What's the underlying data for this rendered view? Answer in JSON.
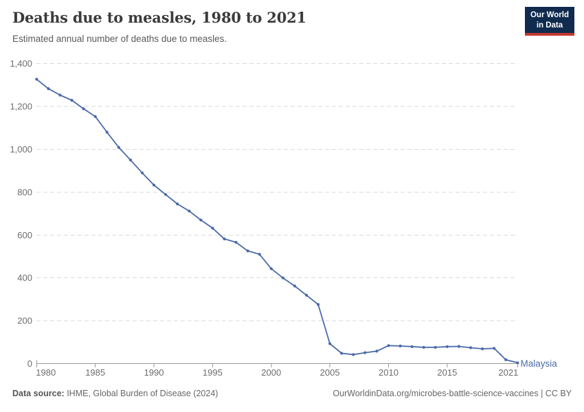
{
  "header": {
    "title": "Deaths due to measles, 1980 to 2021",
    "subtitle": "Estimated annual number of deaths due to measles.",
    "logo": {
      "line1": "Our World",
      "line2": "in Data",
      "bg_color": "#102b4e",
      "accent_color": "#c5392f"
    }
  },
  "chart_data": {
    "type": "line",
    "title": "Deaths due to measles, 1980 to 2021",
    "subtitle": "Estimated annual number of deaths due to measles.",
    "xlabel": "",
    "ylabel": "",
    "xlim": [
      1980,
      2021
    ],
    "ylim": [
      0,
      1400
    ],
    "x_ticks": [
      1980,
      1985,
      1990,
      1995,
      2000,
      2005,
      2010,
      2015,
      2021
    ],
    "y_ticks": [
      0,
      200,
      400,
      600,
      800,
      1000,
      1200,
      1400
    ],
    "grid": "horizontal-dashed",
    "legend_position": "end-of-line-label",
    "colors": {
      "grid": "#dadada",
      "axis": "#979797",
      "tick_label": "#6c6c6c"
    },
    "series": [
      {
        "name": "Malaysia",
        "color": "#4a6aa8",
        "x": [
          1980,
          1981,
          1982,
          1983,
          1984,
          1985,
          1986,
          1987,
          1988,
          1989,
          1990,
          1991,
          1992,
          1993,
          1994,
          1995,
          1996,
          1997,
          1998,
          1999,
          2000,
          2001,
          2002,
          2003,
          2004,
          2005,
          2006,
          2007,
          2008,
          2009,
          2010,
          2011,
          2012,
          2013,
          2014,
          2015,
          2016,
          2017,
          2018,
          2019,
          2020,
          2021
        ],
        "values": [
          1327,
          1283,
          1253,
          1229,
          1189,
          1153,
          1080,
          1009,
          950,
          890,
          833,
          789,
          745,
          712,
          670,
          632,
          582,
          566,
          526,
          510,
          443,
          400,
          362,
          319,
          276,
          93,
          48,
          42,
          51,
          58,
          84,
          82,
          79,
          76,
          76,
          79,
          80,
          74,
          69,
          71,
          18,
          4
        ]
      }
    ]
  },
  "footer": {
    "source_label": "Data source:",
    "source_text": " IHME, Global Burden of Disease (2024)",
    "credit": "OurWorldinData.org/microbes-battle-science-vaccines | CC BY"
  }
}
